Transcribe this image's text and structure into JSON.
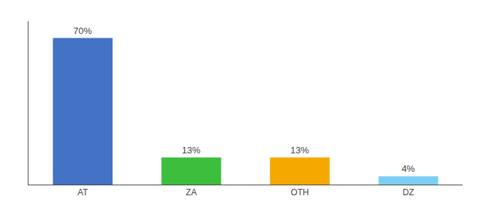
{
  "chart_data": {
    "type": "bar",
    "categories": [
      "AT",
      "ZA",
      "OTH",
      "DZ"
    ],
    "values": [
      70,
      13,
      13,
      4
    ],
    "value_labels": [
      "70%",
      "13%",
      "13%",
      "4%"
    ],
    "colors": [
      "#4472c4",
      "#3dbf3d",
      "#f5a800",
      "#7ecef4"
    ],
    "ylim": [
      0,
      78
    ],
    "grid": false,
    "data_labels": true,
    "tick_labels": "x"
  }
}
